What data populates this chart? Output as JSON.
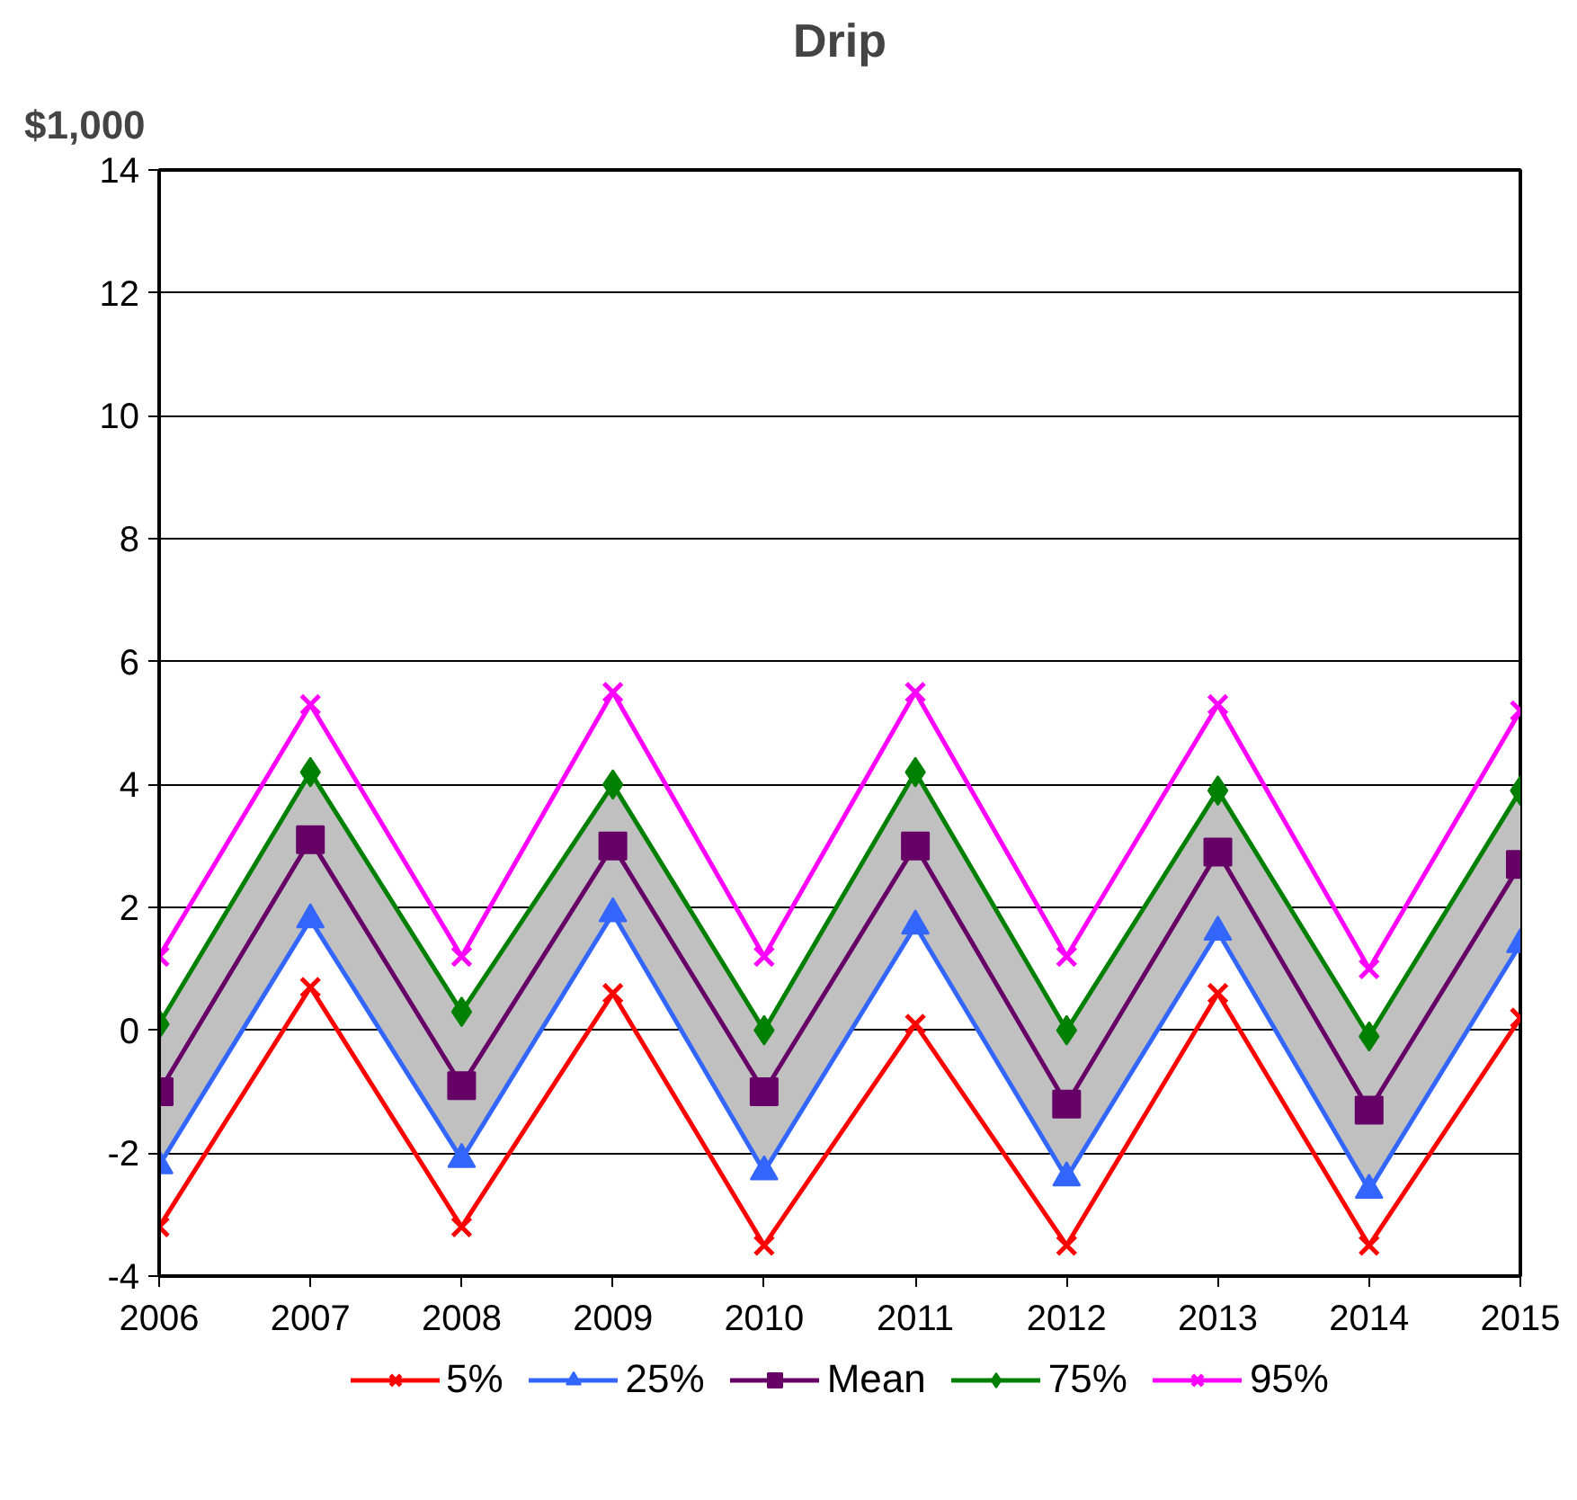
{
  "chart_data": {
    "type": "line",
    "title": "Drip",
    "ylabel": "$1,000",
    "categories": [
      "2006",
      "2007",
      "2008",
      "2009",
      "2010",
      "2011",
      "2012",
      "2013",
      "2014",
      "2015"
    ],
    "ylim": [
      -4,
      14
    ],
    "yticks": [
      -4,
      -2,
      0,
      2,
      4,
      6,
      8,
      10,
      12,
      14
    ],
    "grid": "y",
    "legend": "bottom",
    "series": [
      {
        "name": "5%",
        "color": "#ff0000",
        "marker": "cross",
        "values": [
          -3.2,
          0.7,
          -3.2,
          0.6,
          -3.5,
          0.1,
          -3.5,
          0.6,
          -3.5,
          0.2
        ]
      },
      {
        "name": "25%",
        "color": "#3366ff",
        "marker": "triangle",
        "values": [
          -2.2,
          1.8,
          -2.1,
          1.9,
          -2.3,
          1.7,
          -2.4,
          1.6,
          -2.6,
          1.4
        ]
      },
      {
        "name": "Mean",
        "color": "#660066",
        "marker": "square",
        "values": [
          -1.0,
          3.1,
          -0.9,
          3.0,
          -1.0,
          3.0,
          -1.2,
          2.9,
          -1.3,
          2.7
        ],
        "lower": [
          -2.2,
          1.8,
          -2.1,
          1.9,
          -2.3,
          1.7,
          -2.4,
          1.6,
          -2.6,
          1.4
        ],
        "upper": [
          0.1,
          4.2,
          0.3,
          4.0,
          0.0,
          4.2,
          0.0,
          3.9,
          -0.1,
          3.9
        ]
      },
      {
        "name": "75%",
        "color": "#008000",
        "marker": "diamond",
        "values": [
          0.1,
          4.2,
          0.3,
          4.0,
          0.0,
          4.2,
          0.0,
          3.9,
          -0.1,
          3.9
        ]
      },
      {
        "name": "95%",
        "color": "#ff00ff",
        "marker": "cross",
        "values": [
          1.2,
          5.3,
          1.2,
          5.5,
          1.2,
          5.5,
          1.2,
          5.3,
          1.0,
          5.2
        ]
      }
    ]
  }
}
